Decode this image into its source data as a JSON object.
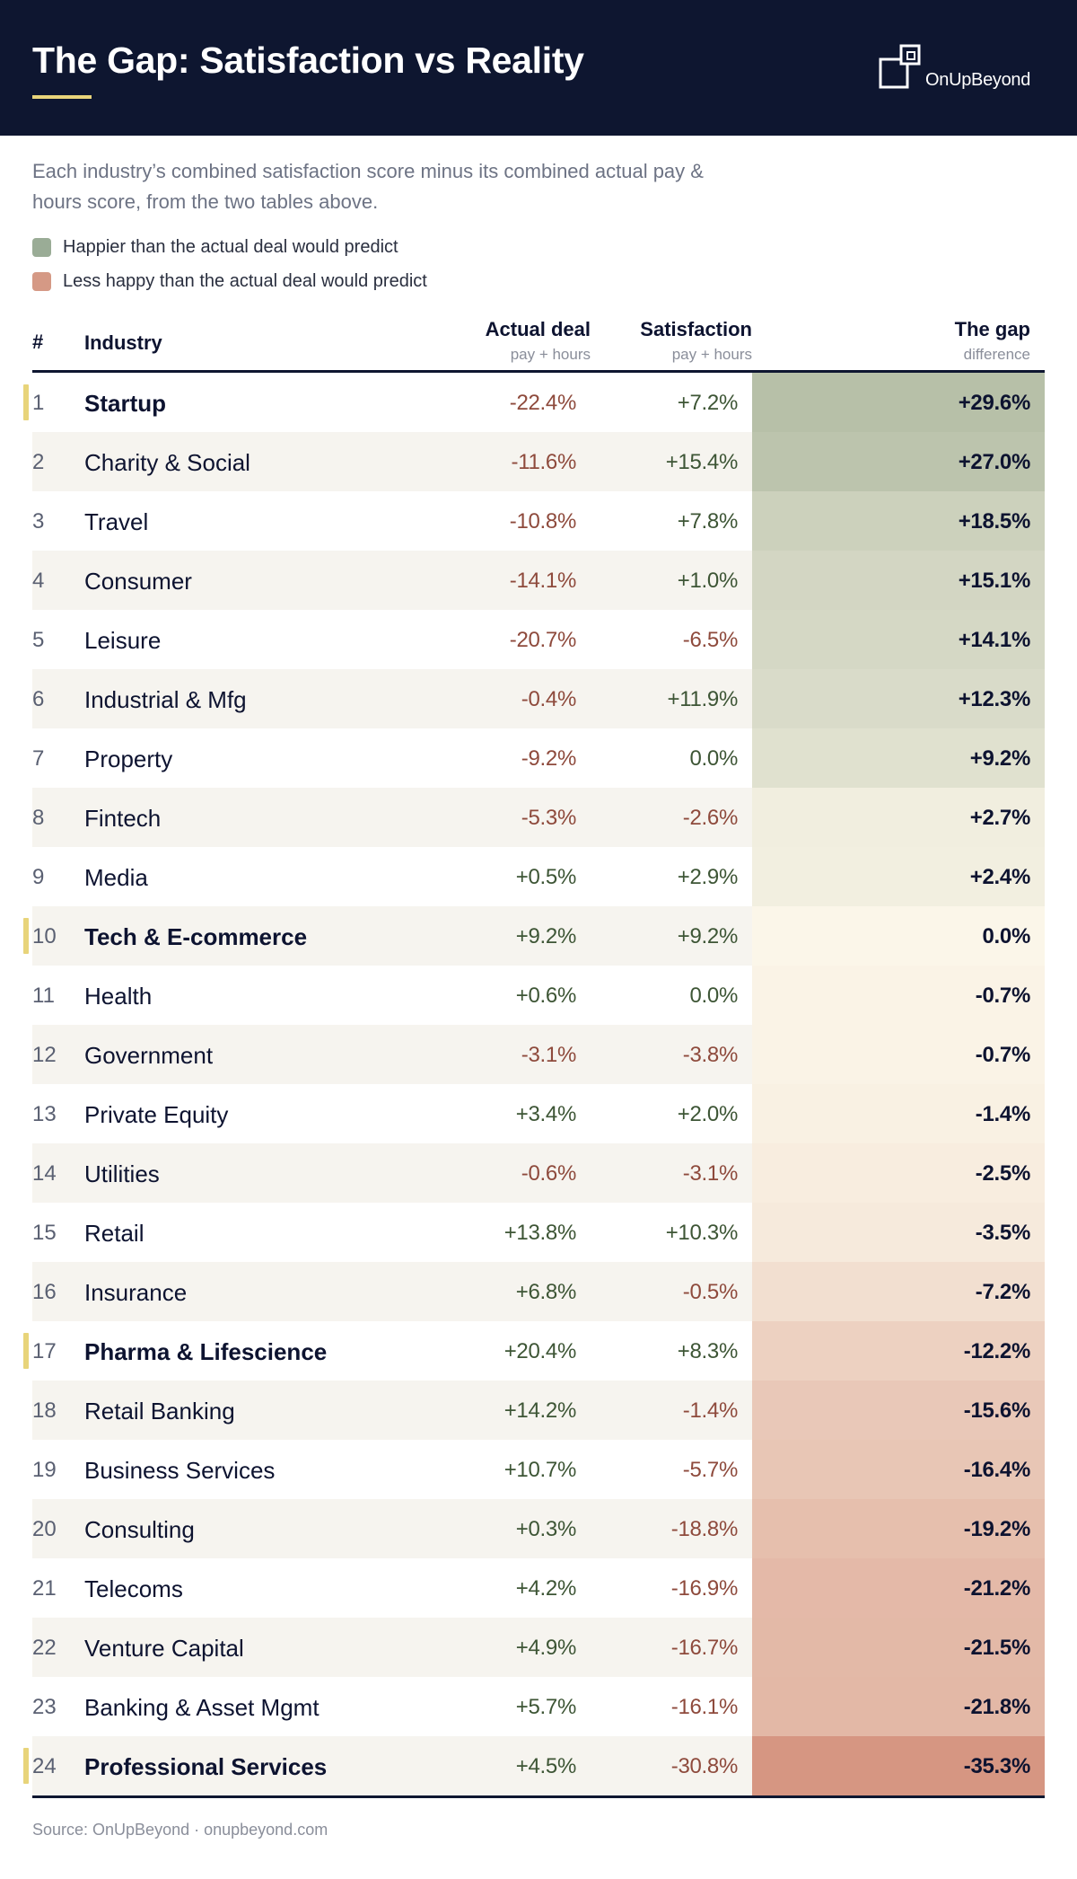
{
  "header": {
    "title": "The Gap: Satisfaction vs Reality",
    "brand": "OnUpBeyond"
  },
  "intro": {
    "subtitle": "Each industry’s combined satisfaction score minus its combined actual pay & hours score, from the two tables above.",
    "legend": [
      {
        "label": "Happier than the actual deal would predict",
        "color": "#9aac96"
      },
      {
        "label": "Less happy than the actual deal would predict",
        "color": "#d59985"
      }
    ]
  },
  "colors": {
    "header_bg": "#0e1630",
    "accent": "#e8d47a",
    "negative_text": "#8e4a3c",
    "positive_text": "#3d5535",
    "gap_positive": "#b7c0a8",
    "gap_neutral": "#fbf6e9",
    "gap_negative": "#d8a08c"
  },
  "columns": {
    "rank": "#",
    "industry": "Industry",
    "actual": "Actual deal",
    "actual_sub": "pay + hours",
    "satisfaction": "Satisfaction",
    "satisfaction_sub": "pay + hours",
    "gap": "The gap",
    "gap_sub": "difference"
  },
  "chart_data": {
    "type": "table",
    "columns": [
      "#",
      "Industry",
      "Actual deal",
      "Satisfaction",
      "The gap"
    ],
    "rows": [
      {
        "rank": "1",
        "industry": "Startup",
        "actual": "-22.4%",
        "satisfaction": "+7.2%",
        "gap": "+29.6%",
        "gap_value": 29.6,
        "highlight": true
      },
      {
        "rank": "2",
        "industry": "Charity & Social",
        "actual": "-11.6%",
        "satisfaction": "+15.4%",
        "gap": "+27.0%",
        "gap_value": 27.0,
        "highlight": false
      },
      {
        "rank": "3",
        "industry": "Travel",
        "actual": "-10.8%",
        "satisfaction": "+7.8%",
        "gap": "+18.5%",
        "gap_value": 18.5,
        "highlight": false
      },
      {
        "rank": "4",
        "industry": "Consumer",
        "actual": "-14.1%",
        "satisfaction": "+1.0%",
        "gap": "+15.1%",
        "gap_value": 15.1,
        "highlight": false
      },
      {
        "rank": "5",
        "industry": "Leisure",
        "actual": "-20.7%",
        "satisfaction": "-6.5%",
        "gap": "+14.1%",
        "gap_value": 14.1,
        "highlight": false
      },
      {
        "rank": "6",
        "industry": "Industrial & Mfg",
        "actual": "-0.4%",
        "satisfaction": "+11.9%",
        "gap": "+12.3%",
        "gap_value": 12.3,
        "highlight": false
      },
      {
        "rank": "7",
        "industry": "Property",
        "actual": "-9.2%",
        "satisfaction": "0.0%",
        "gap": "+9.2%",
        "gap_value": 9.2,
        "highlight": false
      },
      {
        "rank": "8",
        "industry": "Fintech",
        "actual": "-5.3%",
        "satisfaction": "-2.6%",
        "gap": "+2.7%",
        "gap_value": 2.7,
        "highlight": false
      },
      {
        "rank": "9",
        "industry": "Media",
        "actual": "+0.5%",
        "satisfaction": "+2.9%",
        "gap": "+2.4%",
        "gap_value": 2.4,
        "highlight": false
      },
      {
        "rank": "10",
        "industry": "Tech & E-commerce",
        "actual": "+9.2%",
        "satisfaction": "+9.2%",
        "gap": "0.0%",
        "gap_value": 0.0,
        "highlight": true
      },
      {
        "rank": "11",
        "industry": "Health",
        "actual": "+0.6%",
        "satisfaction": "0.0%",
        "gap": "-0.7%",
        "gap_value": -0.7,
        "highlight": false
      },
      {
        "rank": "12",
        "industry": "Government",
        "actual": "-3.1%",
        "satisfaction": "-3.8%",
        "gap": "-0.7%",
        "gap_value": -0.7,
        "highlight": false
      },
      {
        "rank": "13",
        "industry": "Private Equity",
        "actual": "+3.4%",
        "satisfaction": "+2.0%",
        "gap": "-1.4%",
        "gap_value": -1.4,
        "highlight": false
      },
      {
        "rank": "14",
        "industry": "Utilities",
        "actual": "-0.6%",
        "satisfaction": "-3.1%",
        "gap": "-2.5%",
        "gap_value": -2.5,
        "highlight": false
      },
      {
        "rank": "15",
        "industry": "Retail",
        "actual": "+13.8%",
        "satisfaction": "+10.3%",
        "gap": "-3.5%",
        "gap_value": -3.5,
        "highlight": false
      },
      {
        "rank": "16",
        "industry": "Insurance",
        "actual": "+6.8%",
        "satisfaction": "-0.5%",
        "gap": "-7.2%",
        "gap_value": -7.2,
        "highlight": false
      },
      {
        "rank": "17",
        "industry": "Pharma & Lifescience",
        "actual": "+20.4%",
        "satisfaction": "+8.3%",
        "gap": "-12.2%",
        "gap_value": -12.2,
        "highlight": true
      },
      {
        "rank": "18",
        "industry": "Retail Banking",
        "actual": "+14.2%",
        "satisfaction": "-1.4%",
        "gap": "-15.6%",
        "gap_value": -15.6,
        "highlight": false
      },
      {
        "rank": "19",
        "industry": "Business Services",
        "actual": "+10.7%",
        "satisfaction": "-5.7%",
        "gap": "-16.4%",
        "gap_value": -16.4,
        "highlight": false
      },
      {
        "rank": "20",
        "industry": "Consulting",
        "actual": "+0.3%",
        "satisfaction": "-18.8%",
        "gap": "-19.2%",
        "gap_value": -19.2,
        "highlight": false
      },
      {
        "rank": "21",
        "industry": "Telecoms",
        "actual": "+4.2%",
        "satisfaction": "-16.9%",
        "gap": "-21.2%",
        "gap_value": -21.2,
        "highlight": false
      },
      {
        "rank": "22",
        "industry": "Venture Capital",
        "actual": "+4.9%",
        "satisfaction": "-16.7%",
        "gap": "-21.5%",
        "gap_value": -21.5,
        "highlight": false
      },
      {
        "rank": "23",
        "industry": "Banking & Asset Mgmt",
        "actual": "+5.7%",
        "satisfaction": "-16.1%",
        "gap": "-21.8%",
        "gap_value": -21.8,
        "highlight": false
      },
      {
        "rank": "24",
        "industry": "Professional Services",
        "actual": "+4.5%",
        "satisfaction": "-30.8%",
        "gap": "-35.3%",
        "gap_value": -35.3,
        "highlight": true
      }
    ]
  },
  "footer": {
    "source": "Source: OnUpBeyond · onupbeyond.com"
  }
}
